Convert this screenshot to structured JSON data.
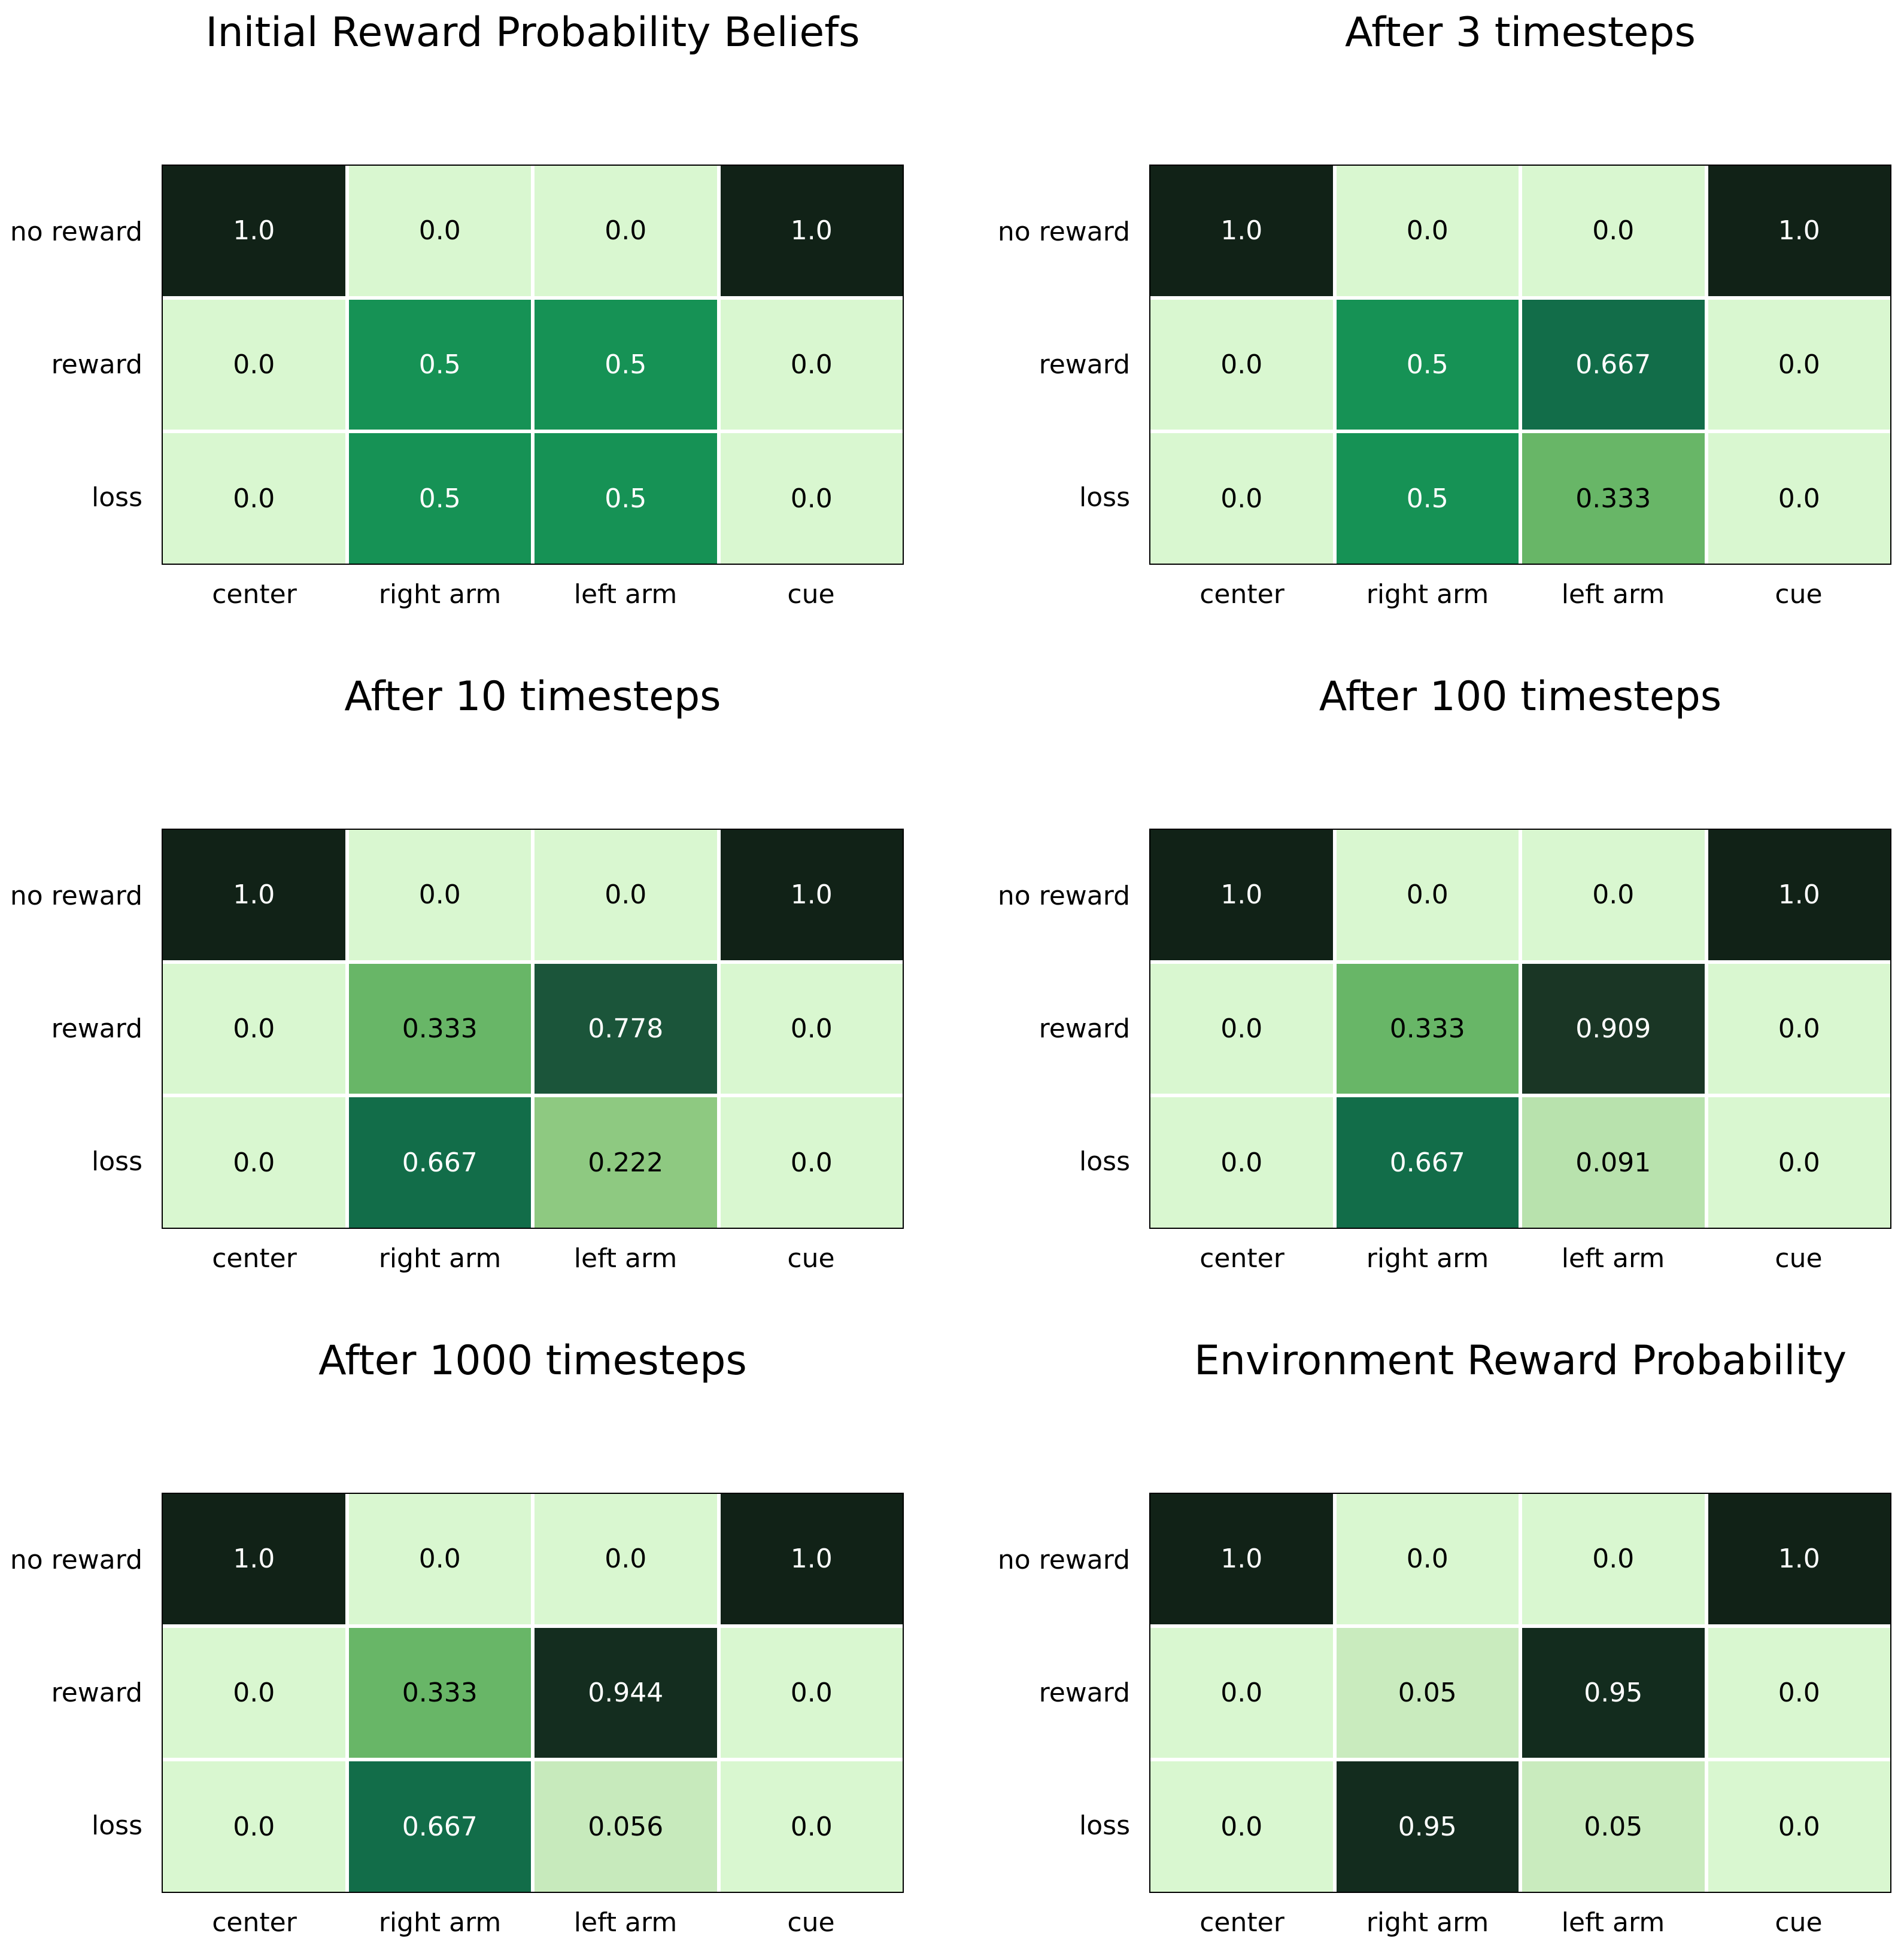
{
  "figure": {
    "background": "#ffffff",
    "rows": [
      "no reward",
      "reward",
      "loss"
    ],
    "columns": [
      "center",
      "right arm",
      "left arm",
      "cue"
    ]
  },
  "colormap": {
    "name": "light-green-to-dark-green",
    "cell_text_on_dark": "#ffffff",
    "cell_text_on_light": "#000000",
    "text_switch_threshold": 0.45,
    "anchors": [
      {
        "value": 0.0,
        "color": "#d9f7d0"
      },
      {
        "value": 0.05,
        "color": "#c9ebbe"
      },
      {
        "value": 0.091,
        "color": "#b8e2ad"
      },
      {
        "value": 0.222,
        "color": "#8ec981"
      },
      {
        "value": 0.333,
        "color": "#68b667"
      },
      {
        "value": 0.5,
        "color": "#169255"
      },
      {
        "value": 0.667,
        "color": "#126d49"
      },
      {
        "value": 0.778,
        "color": "#1b553a"
      },
      {
        "value": 0.909,
        "color": "#1a3625"
      },
      {
        "value": 0.95,
        "color": "#132c1e"
      },
      {
        "value": 1.0,
        "color": "#112217"
      }
    ]
  },
  "chart_data": [
    {
      "type": "heatmap",
      "title": "Initial Reward Probability Beliefs",
      "x": [
        "center",
        "right arm",
        "left arm",
        "cue"
      ],
      "y": [
        "no reward",
        "reward",
        "loss"
      ],
      "values": [
        [
          1.0,
          0.0,
          0.0,
          1.0
        ],
        [
          0.0,
          0.5,
          0.5,
          0.0
        ],
        [
          0.0,
          0.5,
          0.5,
          0.0
        ]
      ],
      "cell_labels": [
        [
          "1.0",
          "0.0",
          "0.0",
          "1.0"
        ],
        [
          "0.0",
          "0.5",
          "0.5",
          "0.0"
        ],
        [
          "0.0",
          "0.5",
          "0.5",
          "0.0"
        ]
      ]
    },
    {
      "type": "heatmap",
      "title": "After 3 timesteps",
      "x": [
        "center",
        "right arm",
        "left arm",
        "cue"
      ],
      "y": [
        "no reward",
        "reward",
        "loss"
      ],
      "values": [
        [
          1.0,
          0.0,
          0.0,
          1.0
        ],
        [
          0.0,
          0.5,
          0.667,
          0.0
        ],
        [
          0.0,
          0.5,
          0.333,
          0.0
        ]
      ],
      "cell_labels": [
        [
          "1.0",
          "0.0",
          "0.0",
          "1.0"
        ],
        [
          "0.0",
          "0.5",
          "0.667",
          "0.0"
        ],
        [
          "0.0",
          "0.5",
          "0.333",
          "0.0"
        ]
      ]
    },
    {
      "type": "heatmap",
      "title": "After 10 timesteps",
      "x": [
        "center",
        "right arm",
        "left arm",
        "cue"
      ],
      "y": [
        "no reward",
        "reward",
        "loss"
      ],
      "values": [
        [
          1.0,
          0.0,
          0.0,
          1.0
        ],
        [
          0.0,
          0.333,
          0.778,
          0.0
        ],
        [
          0.0,
          0.667,
          0.222,
          0.0
        ]
      ],
      "cell_labels": [
        [
          "1.0",
          "0.0",
          "0.0",
          "1.0"
        ],
        [
          "0.0",
          "0.333",
          "0.778",
          "0.0"
        ],
        [
          "0.0",
          "0.667",
          "0.222",
          "0.0"
        ]
      ]
    },
    {
      "type": "heatmap",
      "title": "After 100 timesteps",
      "x": [
        "center",
        "right arm",
        "left arm",
        "cue"
      ],
      "y": [
        "no reward",
        "reward",
        "loss"
      ],
      "values": [
        [
          1.0,
          0.0,
          0.0,
          1.0
        ],
        [
          0.0,
          0.333,
          0.909,
          0.0
        ],
        [
          0.0,
          0.667,
          0.091,
          0.0
        ]
      ],
      "cell_labels": [
        [
          "1.0",
          "0.0",
          "0.0",
          "1.0"
        ],
        [
          "0.0",
          "0.333",
          "0.909",
          "0.0"
        ],
        [
          "0.0",
          "0.667",
          "0.091",
          "0.0"
        ]
      ]
    },
    {
      "type": "heatmap",
      "title": "After 1000 timesteps",
      "x": [
        "center",
        "right arm",
        "left arm",
        "cue"
      ],
      "y": [
        "no reward",
        "reward",
        "loss"
      ],
      "values": [
        [
          1.0,
          0.0,
          0.0,
          1.0
        ],
        [
          0.0,
          0.333,
          0.944,
          0.0
        ],
        [
          0.0,
          0.667,
          0.056,
          0.0
        ]
      ],
      "cell_labels": [
        [
          "1.0",
          "0.0",
          "0.0",
          "1.0"
        ],
        [
          "0.0",
          "0.333",
          "0.944",
          "0.0"
        ],
        [
          "0.0",
          "0.667",
          "0.056",
          "0.0"
        ]
      ]
    },
    {
      "type": "heatmap",
      "title": "Environment Reward Probability",
      "x": [
        "center",
        "right arm",
        "left arm",
        "cue"
      ],
      "y": [
        "no reward",
        "reward",
        "loss"
      ],
      "values": [
        [
          1.0,
          0.0,
          0.0,
          1.0
        ],
        [
          0.0,
          0.05,
          0.95,
          0.0
        ],
        [
          0.0,
          0.95,
          0.05,
          0.0
        ]
      ],
      "cell_labels": [
        [
          "1.0",
          "0.0",
          "0.0",
          "1.0"
        ],
        [
          "0.0",
          "0.05",
          "0.95",
          "0.0"
        ],
        [
          "0.0",
          "0.95",
          "0.05",
          "0.0"
        ]
      ]
    }
  ]
}
